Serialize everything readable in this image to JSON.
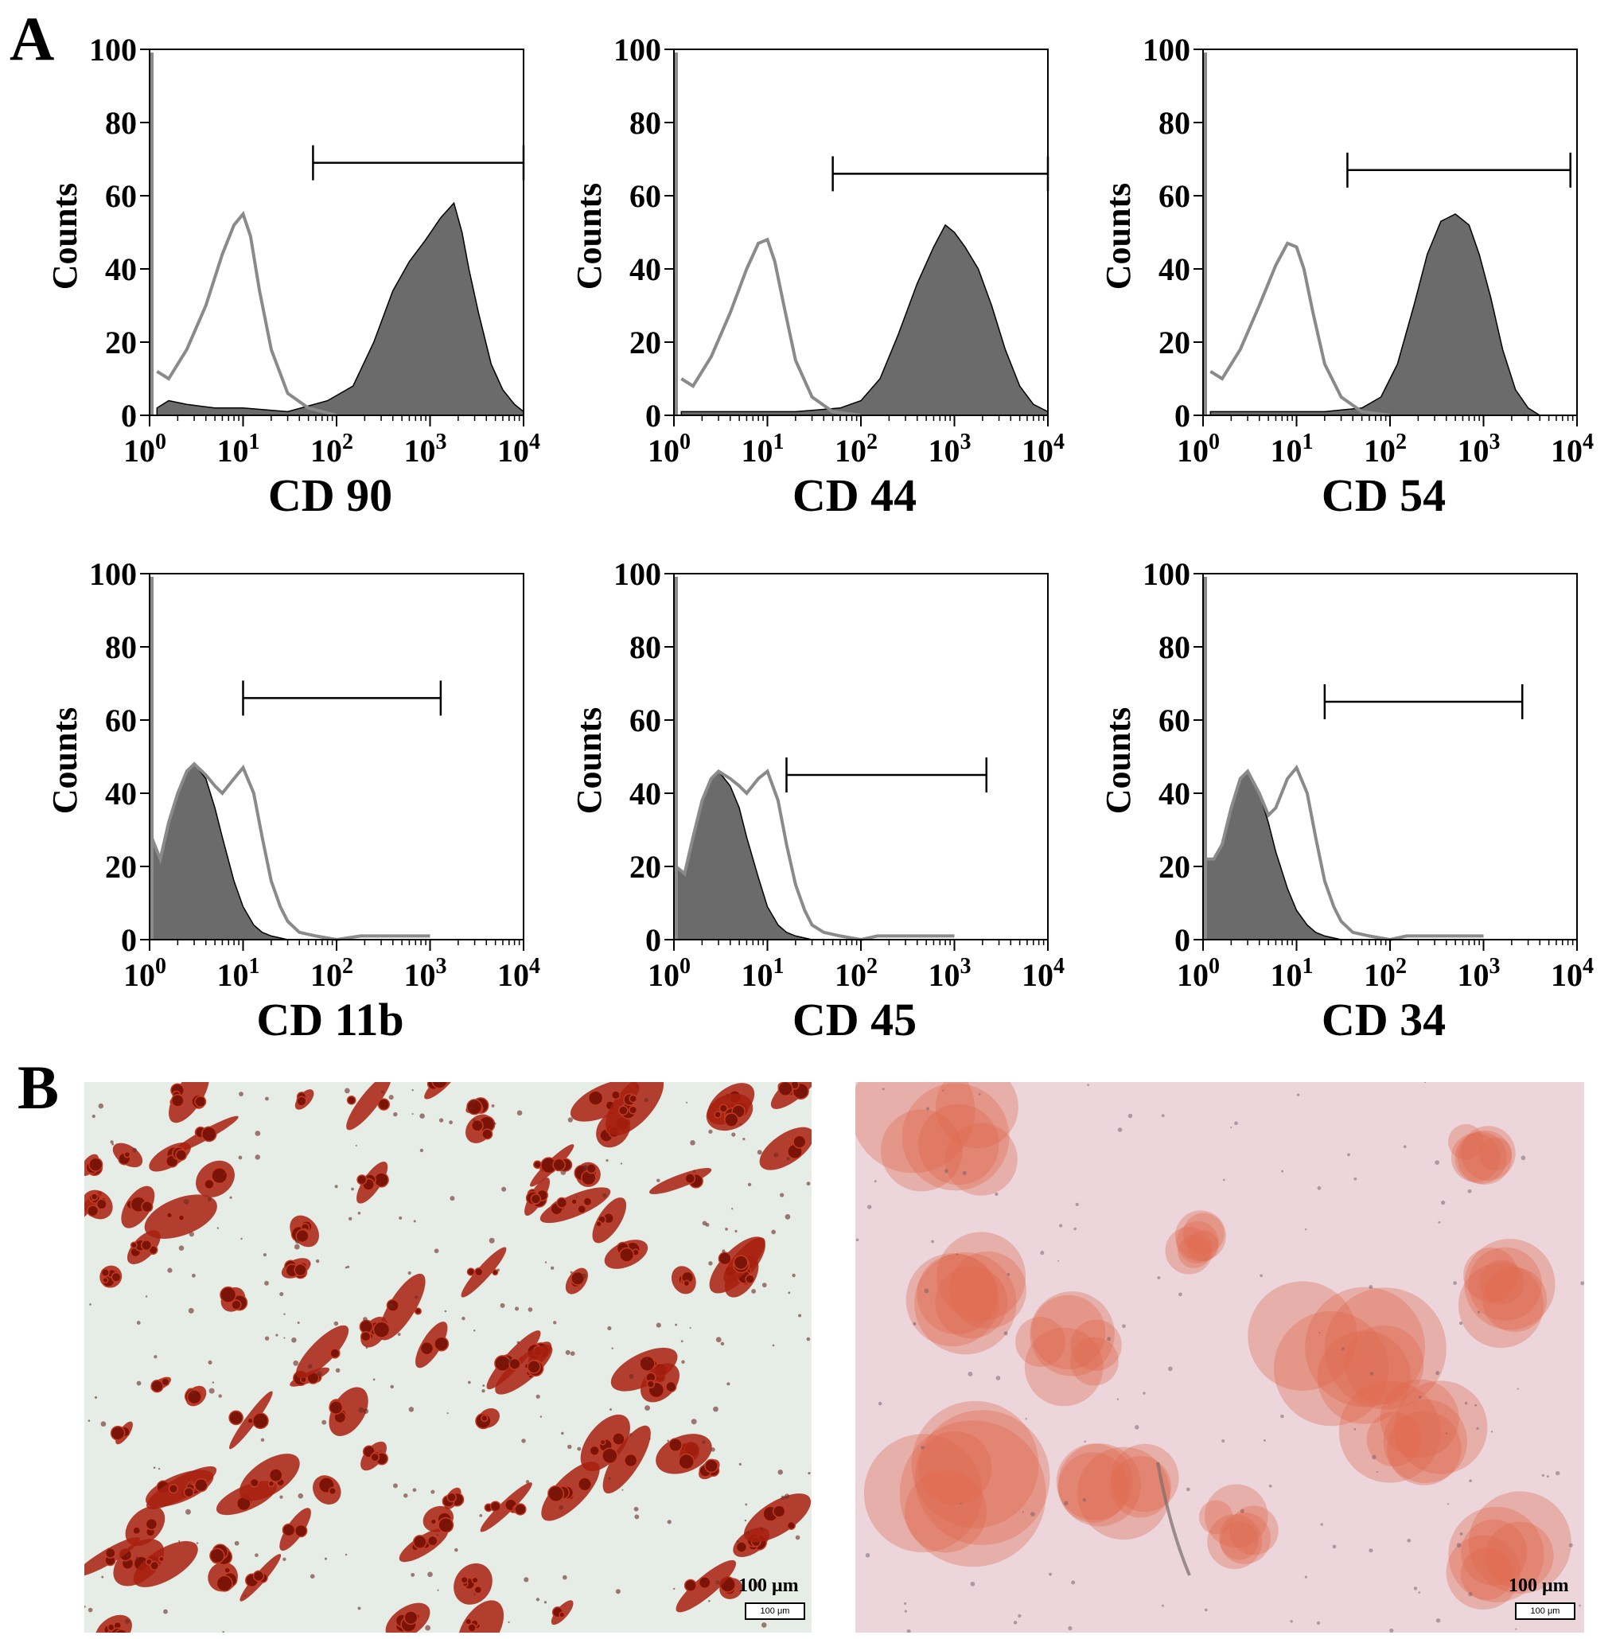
{
  "panel_labels": {
    "a": "A",
    "b": "B"
  },
  "colors": {
    "stained": "#6b6b6b",
    "control": "#8a8a8a",
    "axis": "#000000",
    "oil_red": "#a8200f",
    "alizarin": "#e0674a"
  },
  "chart_data": [
    {
      "type": "area",
      "title": "",
      "xlabel": "CD 90",
      "ylabel": "Counts",
      "xscale": "log",
      "xlim": [
        1,
        10000
      ],
      "ylim": [
        0,
        100
      ],
      "yticks": [
        "0",
        "20",
        "40",
        "60",
        "80",
        "100"
      ],
      "xticks": [
        "10^0",
        "10^1",
        "10^2",
        "10^3",
        "10^4"
      ],
      "gate": {
        "x": [
          56,
          10000
        ],
        "y": 69
      },
      "series": [
        {
          "role": "filled",
          "x": [
            1.2,
            1.6,
            2.5,
            5,
            10,
            30,
            80,
            150,
            250,
            400,
            600,
            900,
            1300,
            1800,
            2200,
            2600,
            3300,
            4500,
            6000,
            8000,
            10000
          ],
          "y": [
            2,
            4,
            3,
            2,
            2,
            1,
            4,
            8,
            20,
            34,
            42,
            48,
            54,
            58,
            50,
            40,
            28,
            14,
            7,
            3,
            1
          ]
        },
        {
          "role": "outline",
          "x": [
            1.2,
            1.6,
            2.5,
            4,
            6,
            8,
            10,
            12,
            15,
            20,
            30,
            50,
            100
          ],
          "y": [
            12,
            10,
            18,
            30,
            44,
            52,
            55,
            49,
            34,
            18,
            6,
            2,
            0
          ]
        }
      ]
    },
    {
      "type": "area",
      "title": "",
      "xlabel": "CD 44",
      "ylabel": "Counts",
      "xscale": "log",
      "xlim": [
        1,
        10000
      ],
      "ylim": [
        0,
        100
      ],
      "yticks": [
        "0",
        "20",
        "40",
        "60",
        "80",
        "100"
      ],
      "xticks": [
        "10^0",
        "10^1",
        "10^2",
        "10^3",
        "10^4"
      ],
      "gate": {
        "x": [
          50,
          10000
        ],
        "y": 66
      },
      "series": [
        {
          "role": "filled",
          "x": [
            1.2,
            2,
            5,
            20,
            60,
            100,
            160,
            250,
            400,
            600,
            800,
            1000,
            1300,
            1800,
            2500,
            3500,
            5000,
            7000,
            10000
          ],
          "y": [
            1,
            1,
            1,
            1,
            2,
            4,
            10,
            22,
            36,
            46,
            52,
            50,
            46,
            40,
            30,
            18,
            8,
            3,
            1
          ]
        },
        {
          "role": "outline",
          "x": [
            1.2,
            1.6,
            2.5,
            4,
            6,
            8,
            10,
            12,
            15,
            20,
            30,
            50,
            100
          ],
          "y": [
            10,
            8,
            16,
            28,
            40,
            47,
            48,
            42,
            30,
            15,
            5,
            1,
            0
          ]
        }
      ]
    },
    {
      "type": "area",
      "title": "",
      "xlabel": "CD 54",
      "ylabel": "Counts",
      "xscale": "log",
      "xlim": [
        1,
        10000
      ],
      "ylim": [
        0,
        100
      ],
      "yticks": [
        "0",
        "20",
        "40",
        "60",
        "80",
        "100"
      ],
      "xticks": [
        "10^0",
        "10^1",
        "10^2",
        "10^3",
        "10^4"
      ],
      "gate": {
        "x": [
          35,
          8500
        ],
        "y": 67
      },
      "series": [
        {
          "role": "filled",
          "x": [
            1.2,
            2,
            5,
            20,
            50,
            80,
            120,
            180,
            250,
            350,
            500,
            700,
            900,
            1200,
            1600,
            2200,
            3000,
            4000,
            10000
          ],
          "y": [
            1,
            1,
            1,
            1,
            2,
            5,
            14,
            30,
            44,
            53,
            55,
            52,
            44,
            32,
            18,
            7,
            2,
            0,
            0
          ]
        },
        {
          "role": "outline",
          "x": [
            1.2,
            1.6,
            2.5,
            4,
            6,
            8,
            10,
            12,
            15,
            20,
            30,
            50,
            100
          ],
          "y": [
            12,
            10,
            18,
            30,
            41,
            47,
            46,
            40,
            28,
            14,
            5,
            1,
            0
          ]
        }
      ]
    },
    {
      "type": "area",
      "title": "",
      "xlabel": "CD 11b",
      "ylabel": "Counts",
      "xscale": "log",
      "xlim": [
        1,
        10000
      ],
      "ylim": [
        0,
        100
      ],
      "yticks": [
        "0",
        "20",
        "40",
        "60",
        "80",
        "100"
      ],
      "xticks": [
        "10^0",
        "10^1",
        "10^2",
        "10^3",
        "10^4"
      ],
      "gate": {
        "x": [
          10,
          1300
        ],
        "y": 66
      },
      "series": [
        {
          "role": "filled",
          "x": [
            1.05,
            1.3,
            1.6,
            2,
            2.5,
            3,
            4,
            5,
            6,
            8,
            10,
            13,
            16,
            20,
            30
          ],
          "y": [
            28,
            22,
            32,
            40,
            46,
            48,
            44,
            36,
            28,
            16,
            9,
            4,
            2,
            1,
            0
          ]
        },
        {
          "role": "outline",
          "x": [
            1.05,
            1.3,
            1.6,
            2,
            2.5,
            3,
            4,
            5,
            6,
            8,
            10,
            13,
            16,
            20,
            25,
            30,
            40,
            60,
            100,
            180,
            1000
          ],
          "y": [
            28,
            22,
            32,
            40,
            46,
            48,
            45,
            42,
            40,
            44,
            47,
            40,
            28,
            16,
            9,
            5,
            2,
            1,
            0,
            1,
            1
          ]
        }
      ]
    },
    {
      "type": "area",
      "title": "",
      "xlabel": "CD 45",
      "ylabel": "Counts",
      "xscale": "log",
      "xlim": [
        1,
        10000
      ],
      "ylim": [
        0,
        100
      ],
      "yticks": [
        "0",
        "20",
        "40",
        "60",
        "80",
        "100"
      ],
      "xticks": [
        "10^0",
        "10^1",
        "10^2",
        "10^3",
        "10^4"
      ],
      "gate": {
        "x": [
          16,
          2200
        ],
        "y": 45
      },
      "series": [
        {
          "role": "filled",
          "x": [
            1.05,
            1.3,
            1.6,
            2,
            2.5,
            3,
            4,
            5,
            6,
            8,
            10,
            13,
            16,
            20,
            30
          ],
          "y": [
            20,
            18,
            28,
            38,
            44,
            46,
            42,
            36,
            28,
            17,
            9,
            4,
            2,
            1,
            0
          ]
        },
        {
          "role": "outline",
          "x": [
            1.05,
            1.3,
            1.6,
            2,
            2.5,
            3,
            4,
            5,
            6,
            8,
            10,
            13,
            16,
            20,
            25,
            30,
            40,
            60,
            100,
            150,
            1000
          ],
          "y": [
            20,
            18,
            28,
            38,
            44,
            46,
            44,
            42,
            40,
            44,
            46,
            38,
            26,
            15,
            8,
            4,
            2,
            1,
            0,
            1,
            1
          ]
        }
      ]
    },
    {
      "type": "area",
      "title": "",
      "xlabel": "CD 34",
      "ylabel": "Counts",
      "xscale": "log",
      "xlim": [
        1,
        10000
      ],
      "ylim": [
        0,
        100
      ],
      "yticks": [
        "0",
        "20",
        "40",
        "60",
        "80",
        "100"
      ],
      "xticks": [
        "10^0",
        "10^1",
        "10^2",
        "10^3",
        "10^4"
      ],
      "gate": {
        "x": [
          20,
          2600
        ],
        "y": 65
      },
      "series": [
        {
          "role": "filled",
          "x": [
            1.05,
            1.3,
            1.6,
            2,
            2.5,
            3,
            4,
            5,
            6,
            8,
            10,
            13,
            16,
            20,
            30
          ],
          "y": [
            22,
            22,
            26,
            36,
            44,
            46,
            40,
            32,
            24,
            14,
            8,
            4,
            2,
            1,
            0
          ]
        },
        {
          "role": "outline",
          "x": [
            1.05,
            1.3,
            1.6,
            2,
            2.5,
            3,
            4,
            5,
            6,
            8,
            10,
            13,
            16,
            20,
            25,
            30,
            40,
            60,
            100,
            150,
            1000
          ],
          "y": [
            22,
            22,
            26,
            36,
            44,
            46,
            40,
            34,
            36,
            44,
            47,
            40,
            28,
            16,
            9,
            5,
            2,
            1,
            0,
            1,
            1
          ]
        }
      ]
    }
  ],
  "micrographs": [
    {
      "id": "adipogenic",
      "scale_label": "100 μm",
      "scale_box_text": "100 μm"
    },
    {
      "id": "osteogenic",
      "scale_label": "100 μm",
      "scale_box_text": "100 μm"
    }
  ]
}
